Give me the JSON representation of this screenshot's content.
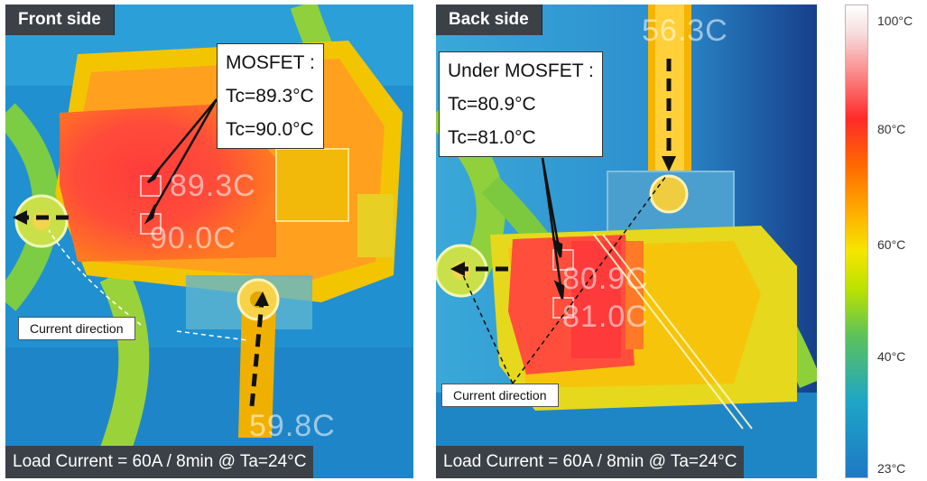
{
  "front": {
    "tag": "Front side",
    "callout": {
      "title": "MOSFET :",
      "line1": "Tc=89.3°C",
      "line2": "Tc=90.0°C"
    },
    "overlay_top": "89.3C",
    "overlay_mid": "90.0C",
    "overlay_bottom": "59.8C",
    "current_label": "Current direction",
    "load": "Load Current = 60A / 8min @ Ta=24°C"
  },
  "back": {
    "tag": "Back side",
    "callout": {
      "title": "Under MOSFET :",
      "line1": "Tc=80.9°C",
      "line2": "Tc=81.0°C"
    },
    "overlay_top": "56.3C",
    "overlay_mid1": "80.9C",
    "overlay_mid2": "81.0C",
    "current_label": "Current direction",
    "load": "Load Current = 60A / 8min @ Ta=24°C"
  },
  "scale": {
    "ticks": [
      "100°C",
      "80°C",
      "60°C",
      "40°C",
      "23°C"
    ]
  },
  "colors": {
    "hot": "#ff2a2a",
    "warm": "#ffae00",
    "mid": "#f5e600",
    "cool": "#1f78c4"
  }
}
